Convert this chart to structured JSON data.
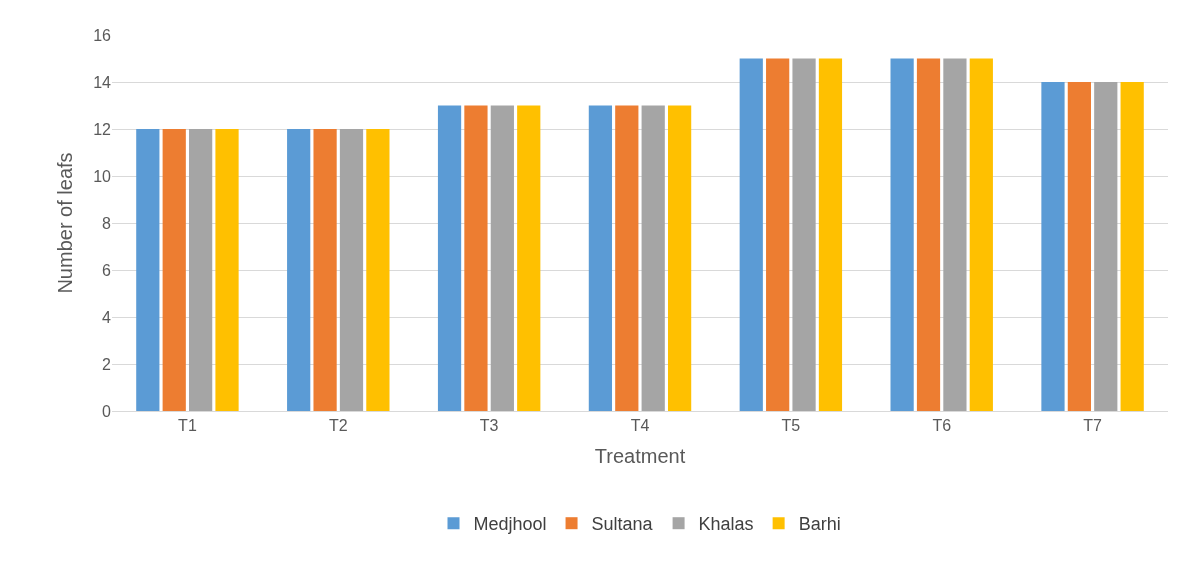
{
  "chart_data": {
    "type": "bar",
    "xlabel": "Treatment",
    "ylabel": "Number of leafs",
    "categories": [
      "T1",
      "T2",
      "T3",
      "T4",
      "T5",
      "T6",
      "T7"
    ],
    "series": [
      {
        "name": "Medjhool",
        "color": "#5b9bd5",
        "values": [
          12,
          12,
          13,
          13,
          15,
          15,
          14
        ]
      },
      {
        "name": "Sultana",
        "color": "#ed7d31",
        "values": [
          12,
          12,
          13,
          13,
          15,
          15,
          14
        ]
      },
      {
        "name": "Khalas",
        "color": "#a5a5a5",
        "values": [
          12,
          12,
          13,
          13,
          15,
          15,
          14
        ]
      },
      {
        "name": "Barhi",
        "color": "#ffc000",
        "values": [
          12,
          12,
          13,
          13,
          15,
          15,
          14
        ]
      }
    ],
    "ylim": [
      0,
      16
    ],
    "yticks": [
      0,
      2,
      4,
      6,
      8,
      10,
      12,
      14,
      16
    ],
    "grid": "y",
    "legend": "bottom"
  }
}
